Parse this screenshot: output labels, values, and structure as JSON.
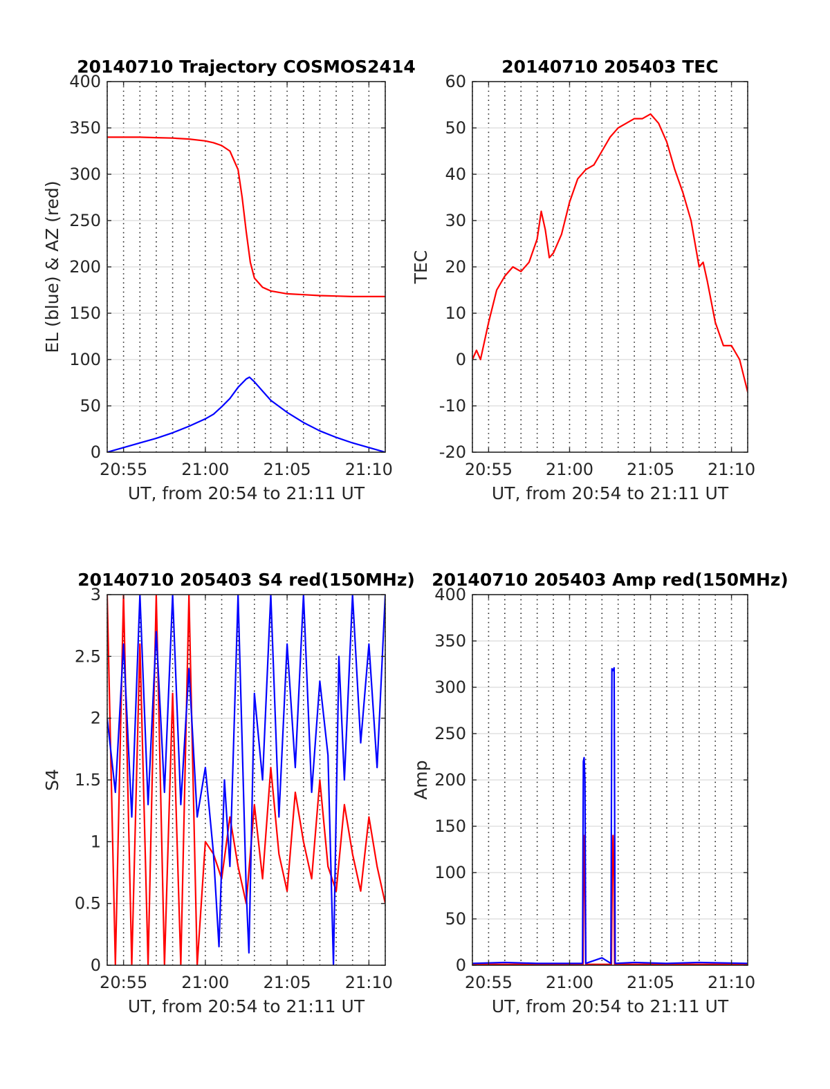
{
  "figure": {
    "colors": {
      "red": "#ff0000",
      "blue": "#0000ff",
      "grid": "#d9d9d9",
      "axis": "#262626"
    }
  },
  "chart_data": [
    {
      "type": "line",
      "title": "20140710 Trajectory COSMOS2414",
      "xlabel": "UT, from 20:54 to 21:11 UT",
      "ylabel": "EL (blue) & AZ (red)",
      "xlim": [
        "20:54",
        "21:11"
      ],
      "ylim": [
        0,
        400
      ],
      "x_ticks": [
        "20:55",
        "21:00",
        "21:05",
        "21:10"
      ],
      "y_ticks": [
        "0",
        "50",
        "100",
        "150",
        "200",
        "250",
        "300",
        "350",
        "400"
      ],
      "y_tick_values": [
        0,
        50,
        100,
        150,
        200,
        250,
        300,
        350,
        400
      ],
      "grid": true,
      "minor_x_grid": "dotted, every minute",
      "series": [
        {
          "color": "#ff0000",
          "x": [
            "20:54",
            "20:55",
            "20:56",
            "20:57",
            "20:58",
            "20:59",
            "21:00",
            "21:00:30",
            "21:01",
            "21:01:30",
            "21:02",
            "21:02:15",
            "21:02:30",
            "21:02:45",
            "21:03",
            "21:03:30",
            "21:04",
            "21:05",
            "21:06",
            "21:07",
            "21:08",
            "21:09",
            "21:10",
            "21:11"
          ],
          "values": [
            340,
            340,
            340,
            339.5,
            339,
            338,
            336,
            334,
            331,
            325,
            305,
            275,
            238,
            205,
            188,
            178,
            174,
            171,
            170,
            169,
            168.5,
            168,
            168,
            168
          ]
        },
        {
          "color": "#0000ff",
          "x": [
            "20:54",
            "20:55",
            "20:56",
            "20:57",
            "20:58",
            "20:59",
            "21:00",
            "21:00:30",
            "21:01",
            "21:01:30",
            "21:02",
            "21:02:30",
            "21:02:42",
            "21:03",
            "21:03:30",
            "21:04",
            "21:05",
            "21:06",
            "21:07",
            "21:08",
            "21:09",
            "21:10",
            "21:11"
          ],
          "values": [
            0,
            5,
            10,
            15,
            21,
            28,
            36,
            41,
            49,
            58,
            70,
            79,
            81,
            76,
            66,
            56,
            43,
            32,
            23,
            16,
            10,
            5,
            0
          ]
        }
      ]
    },
    {
      "type": "line",
      "title": "20140710 205403 TEC",
      "xlabel": "UT, from 20:54 to 21:11 UT",
      "ylabel": "TEC",
      "xlim": [
        "20:54",
        "21:11"
      ],
      "ylim": [
        -20,
        60
      ],
      "x_ticks": [
        "20:55",
        "21:00",
        "21:05",
        "21:10"
      ],
      "y_ticks": [
        "-20",
        "-10",
        "0",
        "10",
        "20",
        "30",
        "40",
        "50",
        "60"
      ],
      "y_tick_values": [
        -20,
        -10,
        0,
        10,
        20,
        30,
        40,
        50,
        60
      ],
      "grid": true,
      "minor_x_grid": "dotted, every minute",
      "series": [
        {
          "color": "#ff0000",
          "x": [
            "20:54",
            "20:54:15",
            "20:54:30",
            "20:55",
            "20:55:30",
            "20:56",
            "20:56:30",
            "20:57",
            "20:57:30",
            "20:58",
            "20:58:15",
            "20:58:30",
            "20:58:45",
            "20:59",
            "20:59:30",
            "21:00",
            "21:00:30",
            "21:01",
            "21:01:30",
            "21:02",
            "21:02:30",
            "21:03",
            "21:03:30",
            "21:04",
            "21:04:30",
            "21:05",
            "21:05:30",
            "21:06",
            "21:06:30",
            "21:07",
            "21:07:30",
            "21:08",
            "21:08:15",
            "21:08:30",
            "21:09",
            "21:09:30",
            "21:10",
            "21:10:30",
            "21:11"
          ],
          "values": [
            0,
            2,
            0,
            8,
            15,
            18,
            20,
            19,
            21,
            26,
            32,
            28,
            22,
            23,
            27,
            34,
            39,
            41,
            42,
            45,
            48,
            50,
            51,
            52,
            52,
            53,
            51,
            47,
            41,
            36,
            30,
            20,
            21,
            17,
            8,
            3,
            3,
            0,
            -7
          ]
        }
      ]
    },
    {
      "type": "line",
      "title": "20140710 205403 S4 red(150MHz)",
      "xlabel": "UT, from 20:54 to 21:11 UT",
      "ylabel": "S4",
      "xlim": [
        "20:54",
        "21:11"
      ],
      "ylim": [
        0,
        3
      ],
      "x_ticks": [
        "20:55",
        "21:00",
        "21:05",
        "21:10"
      ],
      "y_ticks": [
        "0",
        "0.5",
        "1",
        "1.5",
        "2",
        "2.5",
        "3"
      ],
      "y_tick_values": [
        0,
        0.5,
        1,
        1.5,
        2,
        2.5,
        3
      ],
      "grid": true,
      "minor_x_grid": "dotted, every minute",
      "series": [
        {
          "color": "#ff0000",
          "x": [
            "20:54",
            "20:54:30",
            "20:55",
            "20:55:30",
            "20:56",
            "20:56:30",
            "20:57",
            "20:57:30",
            "20:58",
            "20:58:30",
            "20:59",
            "20:59:30",
            "21:00",
            "21:00:30",
            "21:01",
            "21:01:30",
            "21:02",
            "21:02:30",
            "21:03",
            "21:03:30",
            "21:04",
            "21:04:30",
            "21:05",
            "21:05:30",
            "21:06",
            "21:06:30",
            "21:07",
            "21:07:30",
            "21:08",
            "21:08:30",
            "21:09",
            "21:09:30",
            "21:10",
            "21:10:30",
            "21:11"
          ],
          "values": [
            3,
            0,
            3,
            0,
            2.6,
            0,
            3,
            0,
            2.2,
            0,
            3,
            0,
            1.0,
            0.9,
            0.7,
            1.2,
            0.8,
            0.5,
            1.3,
            0.7,
            1.6,
            0.9,
            0.6,
            1.4,
            1.0,
            0.7,
            1.5,
            0.8,
            0.6,
            1.3,
            0.9,
            0.6,
            1.2,
            0.8,
            0.5
          ]
        },
        {
          "color": "#0000ff",
          "x": [
            "20:54",
            "20:54:30",
            "20:55",
            "20:55:30",
            "20:56",
            "20:56:30",
            "20:57",
            "20:57:30",
            "20:58",
            "20:58:30",
            "20:59",
            "20:59:30",
            "21:00",
            "21:00:30",
            "21:00:50",
            "21:01:10",
            "21:01:30",
            "21:02",
            "21:02:30",
            "21:02:40",
            "21:03",
            "21:03:30",
            "21:04",
            "21:04:30",
            "21:05",
            "21:05:30",
            "21:06",
            "21:06:30",
            "21:07",
            "21:07:30",
            "21:07:50",
            "21:08:10",
            "21:08:30",
            "21:09",
            "21:09:30",
            "21:10",
            "21:10:30",
            "21:11"
          ],
          "values": [
            2.0,
            1.4,
            2.6,
            1.2,
            3,
            1.3,
            2.7,
            1.4,
            3,
            1.3,
            2.4,
            1.2,
            1.6,
            0.9,
            0.15,
            1.5,
            0.8,
            3,
            0.6,
            0.1,
            2.2,
            1.5,
            3,
            1.2,
            2.6,
            1.6,
            3,
            1.4,
            2.3,
            1.7,
            0,
            2.5,
            1.5,
            3,
            1.8,
            2.6,
            1.6,
            3
          ]
        }
      ]
    },
    {
      "type": "line",
      "title": "20140710 205403 Amp red(150MHz)",
      "xlabel": "UT, from 20:54 to 21:11 UT",
      "ylabel": "Amp",
      "xlim": [
        "20:54",
        "21:11"
      ],
      "ylim": [
        0,
        400
      ],
      "x_ticks": [
        "20:55",
        "21:00",
        "21:05",
        "21:10"
      ],
      "y_ticks": [
        "0",
        "50",
        "100",
        "150",
        "200",
        "250",
        "300",
        "350",
        "400"
      ],
      "y_tick_values": [
        0,
        50,
        100,
        150,
        200,
        250,
        300,
        350,
        400
      ],
      "grid": true,
      "minor_x_grid": "dotted, every minute",
      "series": [
        {
          "color": "#ff0000",
          "x": [
            "20:54",
            "21:00:50",
            "21:00:52",
            "21:00:55",
            "21:00:58",
            "21:01",
            "21:02:35",
            "21:02:38",
            "21:02:41",
            "21:02:44",
            "21:02:47",
            "21:11"
          ],
          "values": [
            1,
            1,
            110,
            140,
            60,
            1,
            1,
            90,
            140,
            100,
            1,
            1
          ]
        },
        {
          "color": "#0000ff",
          "x": [
            "20:54",
            "20:56",
            "20:58",
            "21:00:48",
            "21:00:51",
            "21:00:54",
            "21:00:57",
            "21:01:00",
            "21:02",
            "21:02:33",
            "21:02:37",
            "21:02:41",
            "21:02:45",
            "21:02:49",
            "21:04",
            "21:06",
            "21:08",
            "21:11"
          ],
          "values": [
            2,
            3,
            2,
            2,
            220,
            224,
            200,
            2,
            8,
            2,
            320,
            318,
            321,
            2,
            3,
            2,
            3,
            2
          ]
        }
      ]
    }
  ]
}
